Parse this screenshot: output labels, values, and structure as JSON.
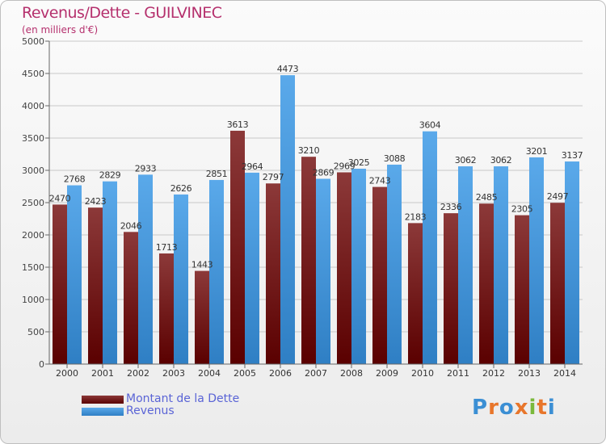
{
  "colors": {
    "debt_dark": "#5a0000",
    "debt_light": "#8c3939",
    "revenue_dark": "#2f7fc4",
    "revenue_light": "#5aa9ea",
    "title": "#b5306d",
    "legend_text": "#5a64d6"
  },
  "header": {
    "title": "Revenus/Dette - GUILVINEC",
    "subtitle": "(en milliers d'€)"
  },
  "legend": {
    "debt_label": "Montant de la Dette",
    "revenue_label": "Revenus"
  },
  "logo": {
    "text": "Proxiti"
  },
  "chart_data": {
    "type": "bar",
    "title": "Revenus/Dette - GUILVINEC",
    "subtitle": "(en milliers d'€)",
    "xlabel": "",
    "ylabel": "",
    "ylim": [
      0,
      5000
    ],
    "yticks": [
      0,
      500,
      1000,
      1500,
      2000,
      2500,
      3000,
      3500,
      4000,
      4500,
      5000
    ],
    "grid": true,
    "categories": [
      "2000",
      "2001",
      "2002",
      "2003",
      "2004",
      "2005",
      "2006",
      "2007",
      "2008",
      "2009",
      "2010",
      "2011",
      "2012",
      "2013",
      "2014"
    ],
    "series": [
      {
        "name": "Montant de la Dette",
        "values": [
          2470,
          2423,
          2046,
          1713,
          1443,
          3613,
          2797,
          3210,
          2969,
          2743,
          2183,
          2336,
          2485,
          2305,
          2497
        ],
        "labels": [
          "2470",
          "2423",
          "2046",
          "1713",
          "1443",
          "3613",
          "2797",
          "3210",
          "2969",
          "2743",
          "2183",
          "2336",
          "2485",
          "2305",
          "2497"
        ]
      },
      {
        "name": "Revenus",
        "values": [
          2768,
          2829,
          2933,
          2626,
          2851,
          2964,
          4473,
          2869,
          3025,
          3088,
          3604,
          3062,
          3062,
          3201,
          3137
        ],
        "labels": [
          "2768",
          "2829",
          "2933",
          "2626",
          "2851",
          "2964",
          "4473",
          "2869",
          "3025",
          "3088",
          "3604",
          "3062",
          "3062",
          "3201",
          "3137"
        ]
      }
    ],
    "legend_position": "bottom-left"
  }
}
